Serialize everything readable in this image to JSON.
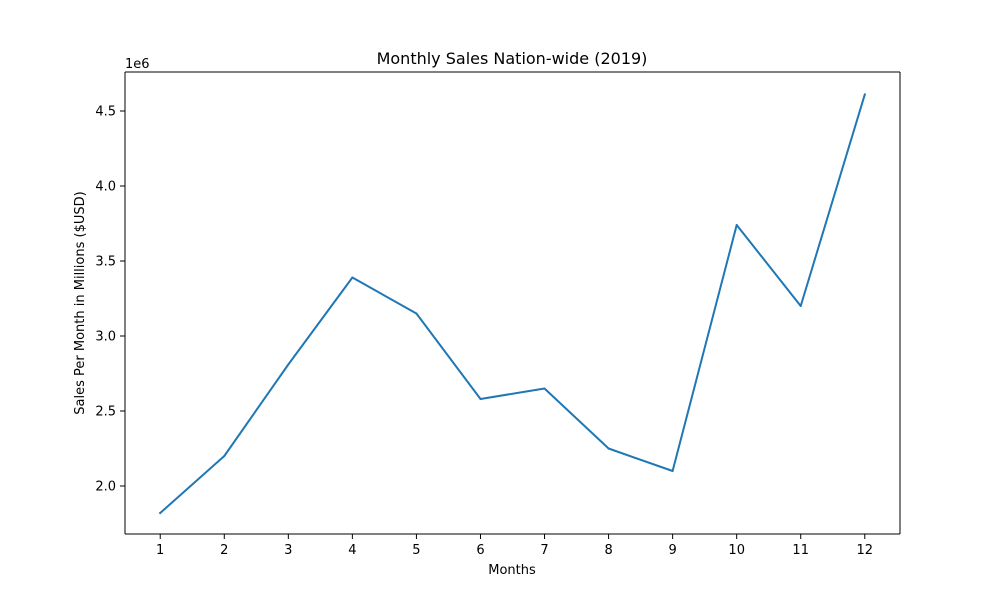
{
  "chart_data": {
    "type": "line",
    "title": "Monthly Sales Nation-wide (2019)",
    "xlabel": "Months",
    "ylabel": "Sales Per Month in Millions ($USD)",
    "offset_text": "1e6",
    "x": [
      1,
      2,
      3,
      4,
      5,
      6,
      7,
      8,
      9,
      10,
      11,
      12
    ],
    "x_tick_labels": [
      "1",
      "2",
      "3",
      "4",
      "5",
      "6",
      "7",
      "8",
      "9",
      "10",
      "11",
      "12"
    ],
    "y_ticks": [
      2.0,
      2.5,
      3.0,
      3.5,
      4.0,
      4.5
    ],
    "y_tick_labels": [
      "2.0",
      "2.5",
      "3.0",
      "3.5",
      "4.0",
      "4.5"
    ],
    "y_scale": 1000000,
    "xlim": [
      0.45,
      12.55
    ],
    "ylim": [
      1.68,
      4.76
    ],
    "grid": false,
    "series": [
      {
        "color": "#1f77b4",
        "values": [
          1.82,
          2.2,
          2.81,
          3.39,
          3.15,
          2.58,
          2.65,
          2.25,
          2.1,
          3.74,
          3.2,
          4.61
        ]
      }
    ]
  }
}
